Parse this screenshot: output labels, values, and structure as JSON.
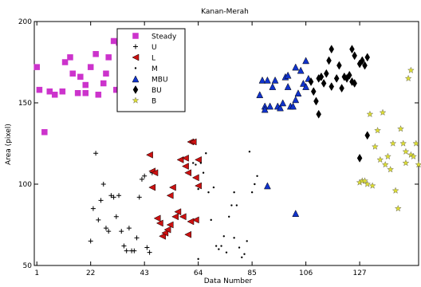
{
  "chart_data": {
    "type": "scatter",
    "title": "Kanan-Merah",
    "xlabel": "Data Number",
    "ylabel": "Area (pixel)",
    "xlim": [
      0,
      150
    ],
    "ylim": [
      50,
      200
    ],
    "x_ticks": [
      1,
      22,
      43,
      64,
      85,
      106,
      127
    ],
    "y_ticks": [
      50,
      100,
      150,
      200
    ],
    "legend_position": "top-left",
    "series": [
      {
        "name": "Steady",
        "marker": "square",
        "color": "#cc33cc",
        "points": [
          [
            1,
            172
          ],
          [
            2,
            158
          ],
          [
            4,
            132
          ],
          [
            6,
            157
          ],
          [
            8,
            155
          ],
          [
            11,
            157
          ],
          [
            12,
            175
          ],
          [
            14,
            178
          ],
          [
            15,
            168
          ],
          [
            17,
            156
          ],
          [
            18,
            166
          ],
          [
            20,
            161
          ],
          [
            20,
            156
          ],
          [
            22,
            172
          ],
          [
            24,
            180
          ],
          [
            25,
            155
          ],
          [
            27,
            162
          ],
          [
            28,
            168
          ],
          [
            29,
            178
          ],
          [
            31,
            188
          ],
          [
            32,
            158
          ],
          [
            33,
            187
          ]
        ]
      },
      {
        "name": "U",
        "marker": "plus",
        "color": "#000000",
        "points": [
          [
            22,
            65
          ],
          [
            23,
            85
          ],
          [
            24,
            119
          ],
          [
            25,
            78
          ],
          [
            26,
            90
          ],
          [
            27,
            100
          ],
          [
            28,
            73
          ],
          [
            29,
            71
          ],
          [
            30,
            93
          ],
          [
            31,
            92
          ],
          [
            32,
            80
          ],
          [
            33,
            93
          ],
          [
            34,
            71
          ],
          [
            35,
            62
          ],
          [
            36,
            59
          ],
          [
            37,
            73
          ],
          [
            38,
            59
          ],
          [
            39,
            59
          ],
          [
            40,
            67
          ],
          [
            41,
            92
          ],
          [
            42,
            103
          ],
          [
            43,
            105
          ],
          [
            44,
            61
          ],
          [
            45,
            58
          ],
          [
            46,
            107
          ]
        ]
      },
      {
        "name": "L",
        "marker": "triangle-left",
        "color": "#cc1111",
        "points": [
          [
            45,
            118
          ],
          [
            46,
            108
          ],
          [
            46,
            98
          ],
          [
            47,
            107
          ],
          [
            48,
            79
          ],
          [
            49,
            76
          ],
          [
            50,
            68
          ],
          [
            51,
            70
          ],
          [
            52,
            72
          ],
          [
            53,
            75
          ],
          [
            53,
            93
          ],
          [
            54,
            98
          ],
          [
            55,
            80
          ],
          [
            56,
            83
          ],
          [
            57,
            115
          ],
          [
            58,
            80
          ],
          [
            59,
            111
          ],
          [
            59,
            116
          ],
          [
            60,
            107
          ],
          [
            61,
            126
          ],
          [
            62,
            126
          ],
          [
            63,
            104
          ],
          [
            64,
            115
          ],
          [
            64,
            99
          ],
          [
            63,
            78
          ],
          [
            61,
            77
          ],
          [
            60,
            69
          ]
        ]
      },
      {
        "name": "M",
        "marker": "dot",
        "color": "#000000",
        "points": [
          [
            62,
            113
          ],
          [
            63,
            112
          ],
          [
            64,
            54
          ],
          [
            64,
            97
          ],
          [
            65,
            113
          ],
          [
            66,
            107
          ],
          [
            67,
            119
          ],
          [
            68,
            95
          ],
          [
            69,
            78
          ],
          [
            70,
            98
          ],
          [
            71,
            62
          ],
          [
            72,
            60
          ],
          [
            73,
            62
          ],
          [
            74,
            68
          ],
          [
            75,
            58
          ],
          [
            76,
            80
          ],
          [
            77,
            87
          ],
          [
            78,
            95
          ],
          [
            78,
            67
          ],
          [
            79,
            87
          ],
          [
            80,
            61
          ],
          [
            81,
            55
          ],
          [
            82,
            57
          ],
          [
            83,
            65
          ],
          [
            84,
            120
          ],
          [
            85,
            95
          ],
          [
            86,
            100
          ],
          [
            87,
            105
          ]
        ]
      },
      {
        "name": "MBU",
        "marker": "triangle-up",
        "color": "#1133cc",
        "points": [
          [
            88,
            155
          ],
          [
            89,
            164
          ],
          [
            90,
            148
          ],
          [
            91,
            164
          ],
          [
            92,
            148
          ],
          [
            93,
            160
          ],
          [
            94,
            164
          ],
          [
            95,
            148
          ],
          [
            96,
            147
          ],
          [
            97,
            150
          ],
          [
            98,
            166
          ],
          [
            99,
            167
          ],
          [
            100,
            148
          ],
          [
            101,
            148
          ],
          [
            102,
            152
          ],
          [
            102,
            172
          ],
          [
            103,
            156
          ],
          [
            104,
            170
          ],
          [
            105,
            162
          ],
          [
            106,
            160
          ],
          [
            107,
            165
          ],
          [
            106,
            176
          ],
          [
            91,
            99
          ],
          [
            102,
            82
          ],
          [
            90,
            146
          ],
          [
            99,
            160
          ]
        ]
      },
      {
        "name": "BU",
        "marker": "diamond",
        "color": "#000000",
        "points": [
          [
            108,
            163
          ],
          [
            109,
            157
          ],
          [
            110,
            151
          ],
          [
            111,
            165
          ],
          [
            111,
            143
          ],
          [
            112,
            166
          ],
          [
            113,
            162
          ],
          [
            114,
            168
          ],
          [
            115,
            176
          ],
          [
            116,
            160
          ],
          [
            116,
            183
          ],
          [
            118,
            165
          ],
          [
            119,
            173
          ],
          [
            121,
            166
          ],
          [
            122,
            165
          ],
          [
            123,
            167
          ],
          [
            124,
            183
          ],
          [
            125,
            162
          ],
          [
            125,
            179
          ],
          [
            127,
            174
          ],
          [
            128,
            176
          ],
          [
            129,
            173
          ],
          [
            130,
            178
          ],
          [
            127,
            116
          ],
          [
            130,
            130
          ],
          [
            124,
            163
          ],
          [
            120,
            159
          ]
        ]
      },
      {
        "name": "B",
        "marker": "star",
        "color": "#dddd33",
        "points": [
          [
            127,
            101
          ],
          [
            128,
            102
          ],
          [
            129,
            102
          ],
          [
            130,
            100
          ],
          [
            131,
            143
          ],
          [
            132,
            99
          ],
          [
            133,
            123
          ],
          [
            134,
            133
          ],
          [
            135,
            115
          ],
          [
            136,
            144
          ],
          [
            137,
            112
          ],
          [
            138,
            117
          ],
          [
            139,
            109
          ],
          [
            140,
            125
          ],
          [
            141,
            96
          ],
          [
            142,
            85
          ],
          [
            143,
            134
          ],
          [
            144,
            125
          ],
          [
            145,
            113
          ],
          [
            146,
            165
          ],
          [
            147,
            170
          ],
          [
            147,
            118
          ],
          [
            148,
            117
          ],
          [
            149,
            125
          ],
          [
            150,
            112
          ],
          [
            145,
            120
          ]
        ]
      }
    ]
  }
}
